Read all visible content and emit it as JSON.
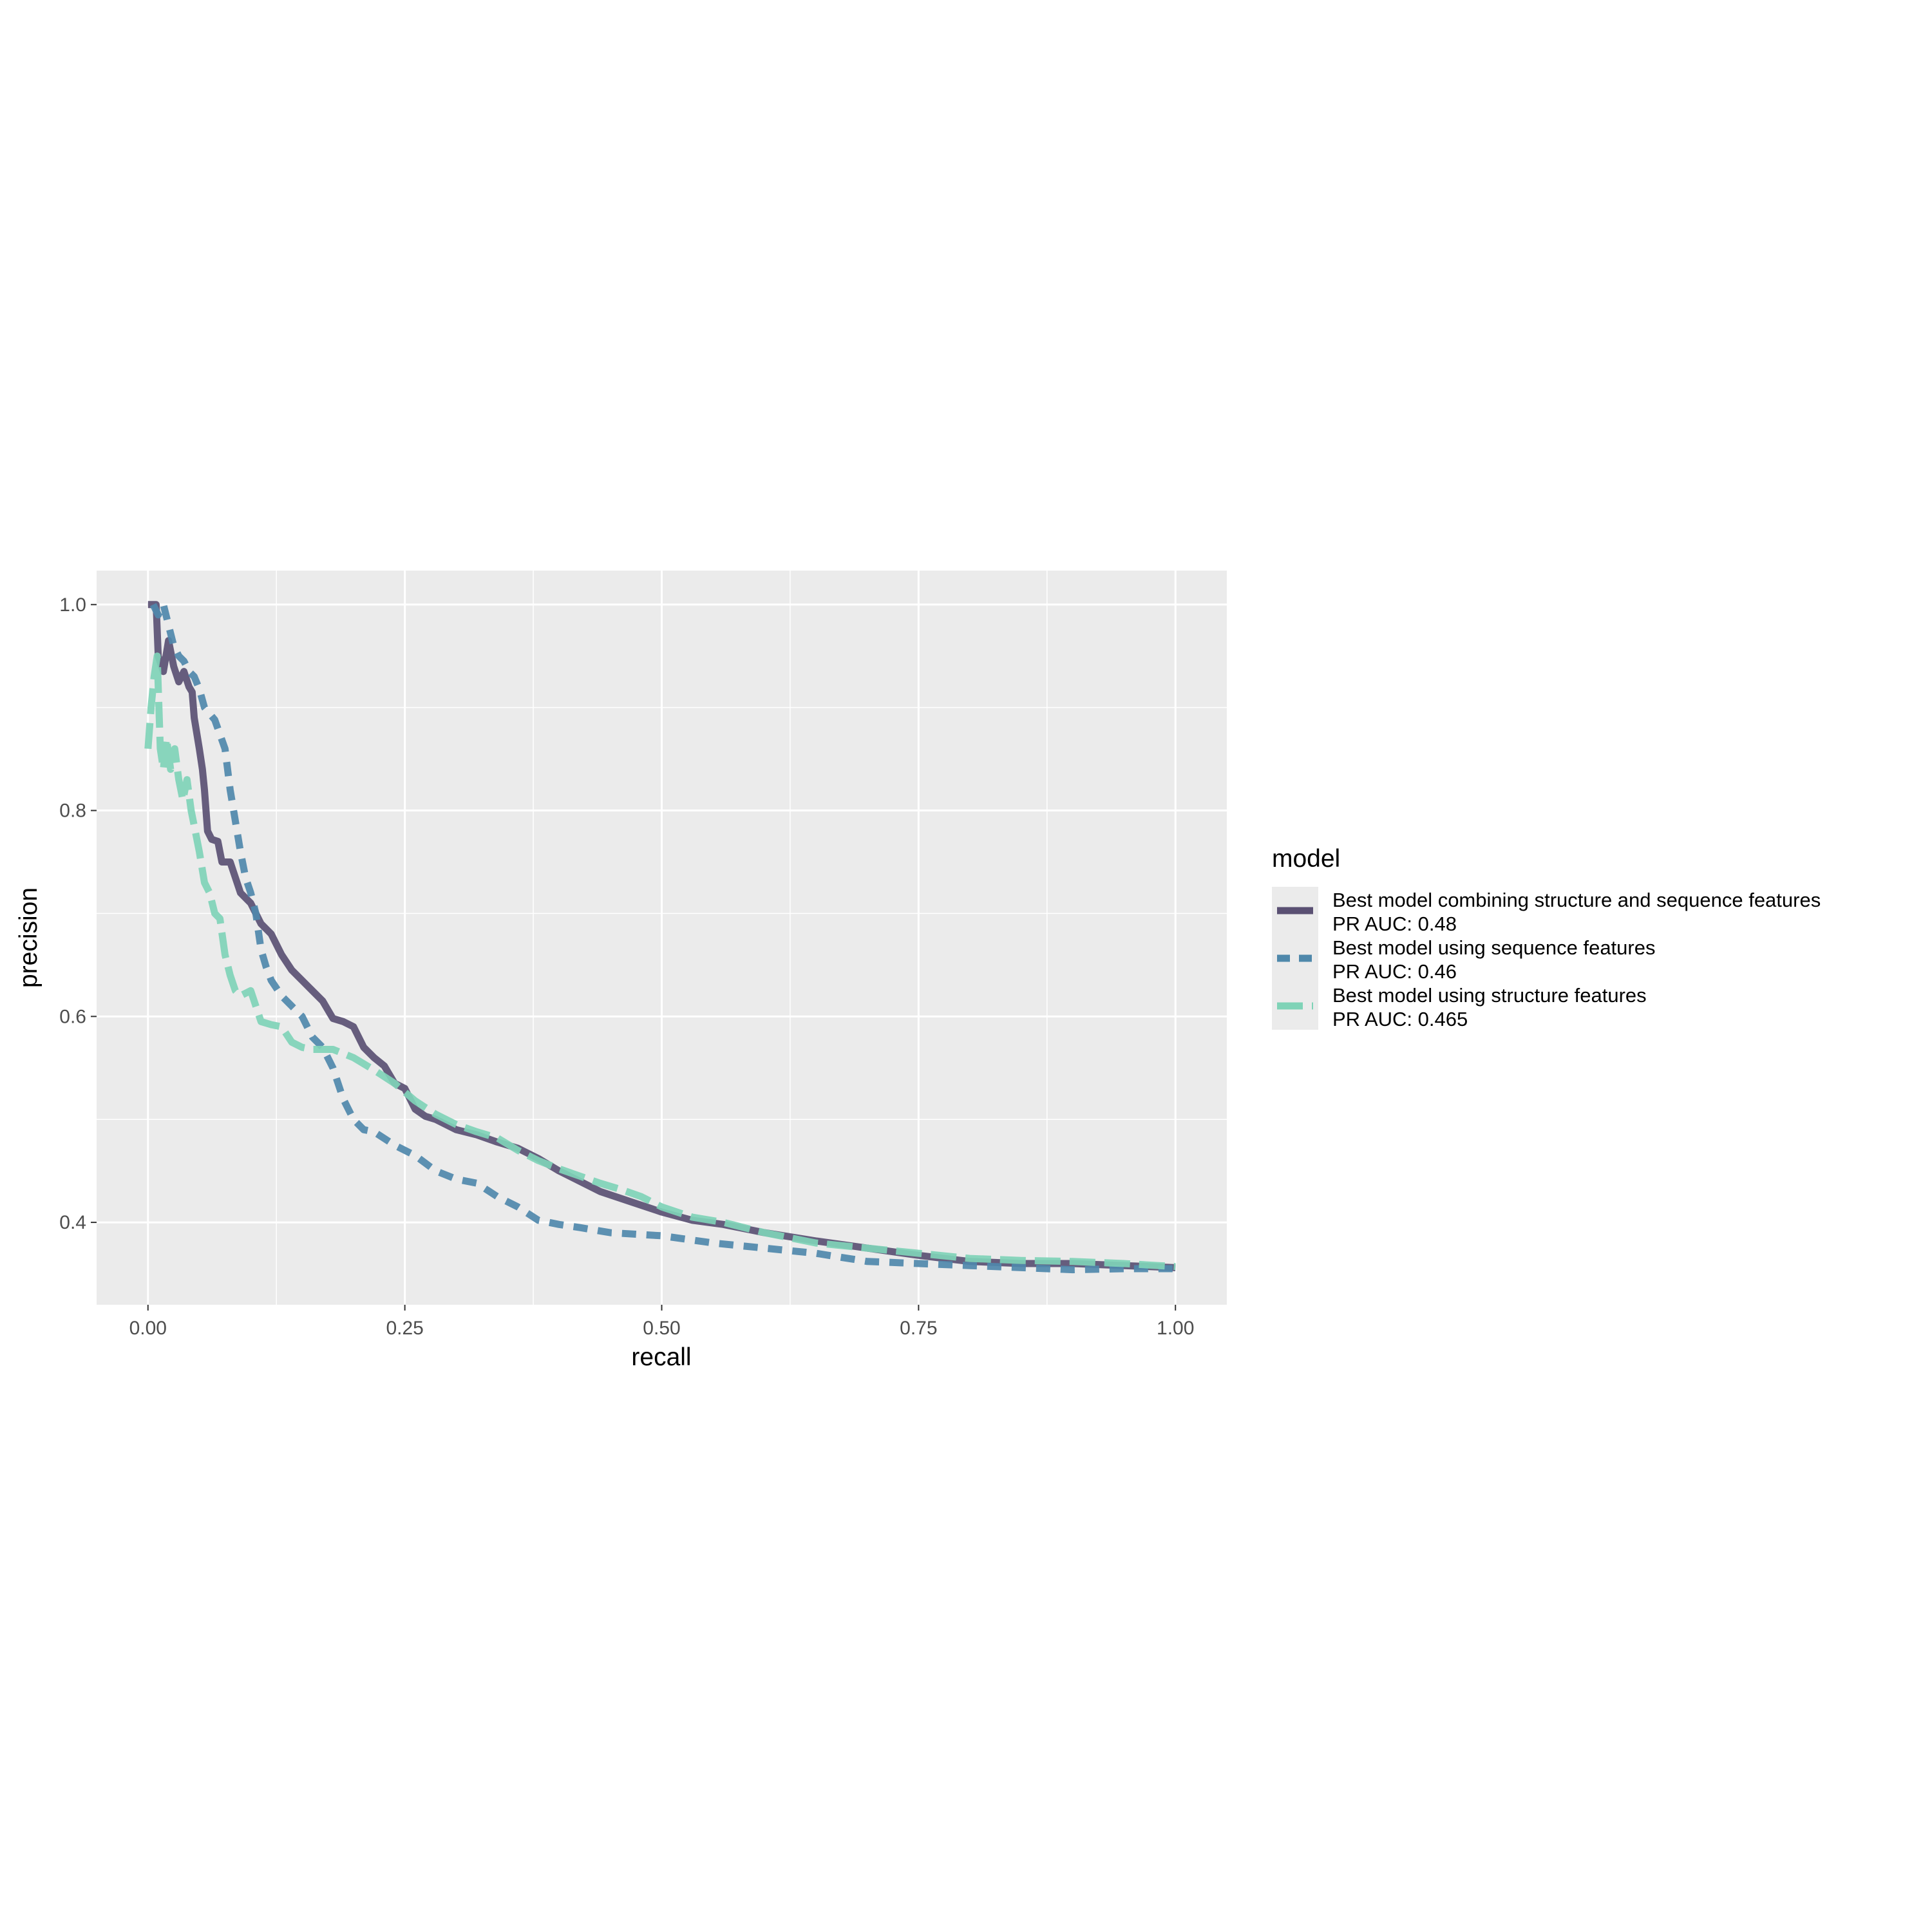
{
  "chart_data": {
    "type": "line",
    "xlabel": "recall",
    "ylabel": "precision",
    "xlim": [
      -0.05,
      1.05
    ],
    "ylim": [
      0.32,
      1.033
    ],
    "x_ticks": [
      {
        "value": 0.0,
        "label": "0.00"
      },
      {
        "value": 0.25,
        "label": "0.25"
      },
      {
        "value": 0.5,
        "label": "0.50"
      },
      {
        "value": 0.75,
        "label": "0.75"
      },
      {
        "value": 1.0,
        "label": "1.00"
      }
    ],
    "y_ticks": [
      {
        "value": 0.4,
        "label": "0.4"
      },
      {
        "value": 0.6,
        "label": "0.6"
      },
      {
        "value": 0.8,
        "label": "0.8"
      },
      {
        "value": 1.0,
        "label": "1.0"
      }
    ],
    "grid": true,
    "legend": {
      "title": "model",
      "position": "right"
    },
    "series": [
      {
        "name": "Best model combining structure and sequence features",
        "name_line2": "PR AUC: 0.48",
        "color": "#5a5073",
        "dash": "solid",
        "points": [
          [
            0.0,
            1.0
          ],
          [
            0.008,
            1.0
          ],
          [
            0.01,
            0.95
          ],
          [
            0.015,
            0.935
          ],
          [
            0.02,
            0.965
          ],
          [
            0.025,
            0.94
          ],
          [
            0.03,
            0.925
          ],
          [
            0.035,
            0.935
          ],
          [
            0.04,
            0.92
          ],
          [
            0.043,
            0.915
          ],
          [
            0.045,
            0.89
          ],
          [
            0.05,
            0.86
          ],
          [
            0.053,
            0.84
          ],
          [
            0.055,
            0.82
          ],
          [
            0.058,
            0.78
          ],
          [
            0.062,
            0.772
          ],
          [
            0.068,
            0.77
          ],
          [
            0.072,
            0.75
          ],
          [
            0.08,
            0.75
          ],
          [
            0.09,
            0.72
          ],
          [
            0.1,
            0.71
          ],
          [
            0.11,
            0.69
          ],
          [
            0.12,
            0.68
          ],
          [
            0.13,
            0.66
          ],
          [
            0.14,
            0.645
          ],
          [
            0.15,
            0.635
          ],
          [
            0.16,
            0.625
          ],
          [
            0.17,
            0.615
          ],
          [
            0.18,
            0.598
          ],
          [
            0.19,
            0.595
          ],
          [
            0.2,
            0.59
          ],
          [
            0.21,
            0.57
          ],
          [
            0.22,
            0.56
          ],
          [
            0.23,
            0.552
          ],
          [
            0.24,
            0.535
          ],
          [
            0.25,
            0.53
          ],
          [
            0.26,
            0.51
          ],
          [
            0.27,
            0.503
          ],
          [
            0.28,
            0.5
          ],
          [
            0.3,
            0.49
          ],
          [
            0.32,
            0.485
          ],
          [
            0.34,
            0.478
          ],
          [
            0.36,
            0.472
          ],
          [
            0.38,
            0.462
          ],
          [
            0.4,
            0.45
          ],
          [
            0.42,
            0.44
          ],
          [
            0.44,
            0.43
          ],
          [
            0.47,
            0.42
          ],
          [
            0.5,
            0.41
          ],
          [
            0.53,
            0.402
          ],
          [
            0.56,
            0.398
          ],
          [
            0.6,
            0.39
          ],
          [
            0.65,
            0.382
          ],
          [
            0.7,
            0.375
          ],
          [
            0.75,
            0.368
          ],
          [
            0.8,
            0.362
          ],
          [
            0.85,
            0.36
          ],
          [
            0.9,
            0.36
          ],
          [
            0.95,
            0.358
          ],
          [
            1.0,
            0.356
          ]
        ]
      },
      {
        "name": "Best model using sequence features",
        "name_line2": "PR AUC: 0.46",
        "color": "#4f88ab",
        "dash": "dashed",
        "points": [
          [
            0.005,
            1.0
          ],
          [
            0.01,
            0.99
          ],
          [
            0.015,
            1.0
          ],
          [
            0.02,
            0.98
          ],
          [
            0.025,
            0.96
          ],
          [
            0.03,
            0.95
          ],
          [
            0.035,
            0.945
          ],
          [
            0.04,
            0.935
          ],
          [
            0.045,
            0.93
          ],
          [
            0.05,
            0.918
          ],
          [
            0.055,
            0.9
          ],
          [
            0.065,
            0.888
          ],
          [
            0.075,
            0.86
          ],
          [
            0.08,
            0.82
          ],
          [
            0.085,
            0.79
          ],
          [
            0.09,
            0.76
          ],
          [
            0.095,
            0.735
          ],
          [
            0.1,
            0.72
          ],
          [
            0.105,
            0.7
          ],
          [
            0.11,
            0.665
          ],
          [
            0.115,
            0.648
          ],
          [
            0.12,
            0.635
          ],
          [
            0.13,
            0.62
          ],
          [
            0.14,
            0.61
          ],
          [
            0.15,
            0.6
          ],
          [
            0.16,
            0.58
          ],
          [
            0.17,
            0.57
          ],
          [
            0.18,
            0.55
          ],
          [
            0.19,
            0.52
          ],
          [
            0.2,
            0.5
          ],
          [
            0.21,
            0.49
          ],
          [
            0.22,
            0.488
          ],
          [
            0.24,
            0.475
          ],
          [
            0.26,
            0.465
          ],
          [
            0.28,
            0.45
          ],
          [
            0.3,
            0.442
          ],
          [
            0.32,
            0.438
          ],
          [
            0.34,
            0.425
          ],
          [
            0.36,
            0.415
          ],
          [
            0.38,
            0.402
          ],
          [
            0.4,
            0.398
          ],
          [
            0.42,
            0.395
          ],
          [
            0.45,
            0.39
          ],
          [
            0.5,
            0.387
          ],
          [
            0.55,
            0.38
          ],
          [
            0.6,
            0.375
          ],
          [
            0.65,
            0.37
          ],
          [
            0.7,
            0.362
          ],
          [
            0.75,
            0.36
          ],
          [
            0.8,
            0.358
          ],
          [
            0.85,
            0.356
          ],
          [
            0.9,
            0.354
          ],
          [
            0.95,
            0.355
          ],
          [
            1.0,
            0.355
          ]
        ]
      },
      {
        "name": "Best model using structure features",
        "name_line2": "PR AUC: 0.465",
        "color": "#7fd3b7",
        "dash": "long-dashed",
        "points": [
          [
            0.0,
            0.86
          ],
          [
            0.003,
            0.9
          ],
          [
            0.006,
            0.93
          ],
          [
            0.009,
            0.95
          ],
          [
            0.012,
            0.86
          ],
          [
            0.015,
            0.84
          ],
          [
            0.018,
            0.87
          ],
          [
            0.022,
            0.84
          ],
          [
            0.026,
            0.86
          ],
          [
            0.03,
            0.83
          ],
          [
            0.034,
            0.81
          ],
          [
            0.038,
            0.83
          ],
          [
            0.042,
            0.8
          ],
          [
            0.046,
            0.78
          ],
          [
            0.05,
            0.76
          ],
          [
            0.055,
            0.73
          ],
          [
            0.06,
            0.72
          ],
          [
            0.065,
            0.7
          ],
          [
            0.07,
            0.695
          ],
          [
            0.075,
            0.66
          ],
          [
            0.08,
            0.64
          ],
          [
            0.085,
            0.625
          ],
          [
            0.09,
            0.62
          ],
          [
            0.1,
            0.625
          ],
          [
            0.11,
            0.595
          ],
          [
            0.12,
            0.592
          ],
          [
            0.13,
            0.59
          ],
          [
            0.14,
            0.575
          ],
          [
            0.15,
            0.57
          ],
          [
            0.16,
            0.568
          ],
          [
            0.18,
            0.568
          ],
          [
            0.2,
            0.56
          ],
          [
            0.22,
            0.548
          ],
          [
            0.24,
            0.535
          ],
          [
            0.26,
            0.518
          ],
          [
            0.28,
            0.505
          ],
          [
            0.3,
            0.495
          ],
          [
            0.32,
            0.488
          ],
          [
            0.34,
            0.482
          ],
          [
            0.36,
            0.47
          ],
          [
            0.38,
            0.46
          ],
          [
            0.4,
            0.452
          ],
          [
            0.42,
            0.445
          ],
          [
            0.44,
            0.438
          ],
          [
            0.46,
            0.432
          ],
          [
            0.48,
            0.425
          ],
          [
            0.5,
            0.415
          ],
          [
            0.53,
            0.405
          ],
          [
            0.56,
            0.4
          ],
          [
            0.6,
            0.39
          ],
          [
            0.65,
            0.38
          ],
          [
            0.7,
            0.375
          ],
          [
            0.75,
            0.37
          ],
          [
            0.8,
            0.365
          ],
          [
            0.85,
            0.363
          ],
          [
            0.9,
            0.362
          ],
          [
            0.95,
            0.36
          ],
          [
            1.0,
            0.357
          ]
        ]
      }
    ]
  }
}
